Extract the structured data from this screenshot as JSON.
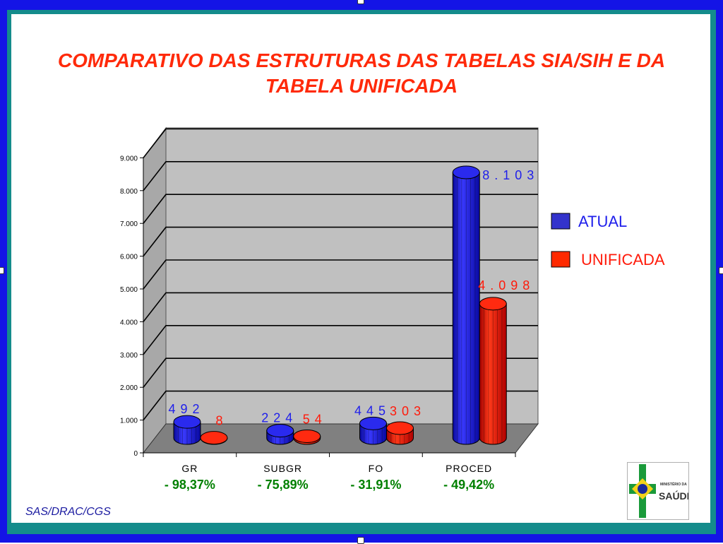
{
  "slide": {
    "title_line1": "COMPARATIVO DAS ESTRUTURAS DAS  TABELAS SIA/SIH E DA",
    "title_line2": "TABELA UNIFICADA",
    "footer": "SAS/DRAC/CGS",
    "logo_text_line1": "MINISTÉRIO DA",
    "logo_text_line2": "SAÚDE"
  },
  "chart_data": {
    "type": "bar",
    "categories": [
      "GR",
      "SUBGR",
      "FO",
      "PROCED"
    ],
    "series": [
      {
        "name": "ATUAL",
        "values": [
          492,
          224,
          445,
          8103
        ],
        "labels": [
          "4 9 2",
          "2 2 4",
          "4 4 5",
          "8 . 1 0 3"
        ],
        "color": "#1e1eeb"
      },
      {
        "name": "UNIFICADA",
        "values": [
          8,
          54,
          303,
          4098
        ],
        "labels": [
          "8",
          "5 4",
          "3 0 3",
          "4 . 0 9 8"
        ],
        "color": "#ff1a0a"
      }
    ],
    "change_labels": [
      "- 98,37%",
      "- 75,89%",
      "- 31,91%",
      "- 49,42%"
    ],
    "y_ticks": [
      "0",
      "1.000",
      "2.000",
      "3.000",
      "4.000",
      "5.000",
      "6.000",
      "7.000",
      "8.000",
      "9.000"
    ],
    "ylim": [
      0,
      9000
    ],
    "grid": true,
    "legend_position": "right",
    "colors": {
      "atual_label": "#1e1eeb",
      "unificada_label": "#ff1a0a",
      "change_label": "#008000",
      "wall": "#c0c0c0",
      "floor": "#808080"
    }
  }
}
